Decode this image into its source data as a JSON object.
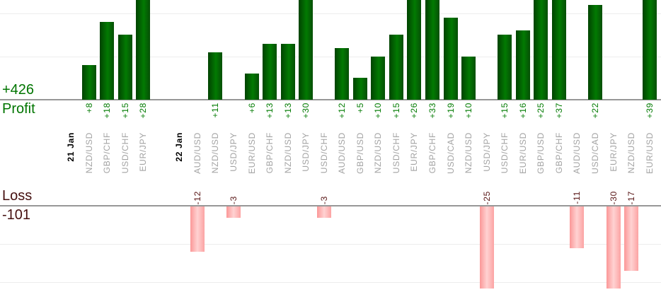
{
  "chart_data": {
    "type": "bar",
    "profit_total_label": "+426",
    "profit_axis_label": "Profit",
    "loss_axis_label": "Loss",
    "loss_total_label": "-101",
    "grid": true,
    "gridline_interval": 10,
    "legend_position": "none",
    "colors": {
      "profit_bar": "#026b02",
      "loss_bar": "#ffb5b5",
      "profit_text": "#007a00",
      "loss_text": "#571414",
      "pair_label_text": "#a3a3a3",
      "date_label_text": "#000000",
      "axis_line": "#979797",
      "gridline": "#ededed"
    },
    "columns": [
      {
        "type": "date",
        "label": "21 Jan"
      },
      {
        "type": "trade",
        "pair": "NZD/USD",
        "value": 8,
        "value_label": "+8"
      },
      {
        "type": "trade",
        "pair": "GBP/CHF",
        "value": 18,
        "value_label": "+18"
      },
      {
        "type": "trade",
        "pair": "USD/CHF",
        "value": 15,
        "value_label": "+15"
      },
      {
        "type": "trade",
        "pair": "EUR/JPY",
        "value": 28,
        "value_label": "+28"
      },
      {
        "type": "spacer"
      },
      {
        "type": "date",
        "label": "22 Jan"
      },
      {
        "type": "trade",
        "pair": "AUD/USD",
        "value": -12,
        "value_label": "-12"
      },
      {
        "type": "trade",
        "pair": "NZD/USD",
        "value": 11,
        "value_label": "+11"
      },
      {
        "type": "trade",
        "pair": "USD/JPY",
        "value": -3,
        "value_label": "-3"
      },
      {
        "type": "trade",
        "pair": "EUR/USD",
        "value": 6,
        "value_label": "+6"
      },
      {
        "type": "trade",
        "pair": "GBP/CHF",
        "value": 13,
        "value_label": "+13"
      },
      {
        "type": "trade",
        "pair": "NZD/USD",
        "value": 13,
        "value_label": "+13"
      },
      {
        "type": "trade",
        "pair": "USD/JPY",
        "value": 30,
        "value_label": "+30"
      },
      {
        "type": "trade",
        "pair": "USD/CHF",
        "value": -3,
        "value_label": "-3"
      },
      {
        "type": "trade",
        "pair": "AUD/USD",
        "value": 12,
        "value_label": "+12"
      },
      {
        "type": "trade",
        "pair": "GBP/USD",
        "value": 5,
        "value_label": "+5"
      },
      {
        "type": "trade",
        "pair": "NZD/USD",
        "value": 10,
        "value_label": "+10"
      },
      {
        "type": "trade",
        "pair": "USD/CHF",
        "value": 15,
        "value_label": "+15"
      },
      {
        "type": "trade",
        "pair": "EUR/JPY",
        "value": 26,
        "value_label": "+26"
      },
      {
        "type": "trade",
        "pair": "GBP/CHF",
        "value": 33,
        "value_label": "+33"
      },
      {
        "type": "trade",
        "pair": "USD/CAD",
        "value": 19,
        "value_label": "+19"
      },
      {
        "type": "trade",
        "pair": "NZD/USD",
        "value": 10,
        "value_label": "+10"
      },
      {
        "type": "trade",
        "pair": "USD/JPY",
        "value": -25,
        "value_label": "-25"
      },
      {
        "type": "trade",
        "pair": "USD/CHF",
        "value": 15,
        "value_label": "+15"
      },
      {
        "type": "trade",
        "pair": "EUR/USD",
        "value": 16,
        "value_label": "+16"
      },
      {
        "type": "trade",
        "pair": "GBP/USD",
        "value": 25,
        "value_label": "+25"
      },
      {
        "type": "trade",
        "pair": "GBP/CHF",
        "value": 37,
        "value_label": "+37"
      },
      {
        "type": "trade",
        "pair": "AUD/USD",
        "value": -11,
        "value_label": "-11"
      },
      {
        "type": "trade",
        "pair": "USD/CAD",
        "value": 22,
        "value_label": "+22"
      },
      {
        "type": "trade",
        "pair": "EUR/JPY",
        "value": -30,
        "value_label": "-30"
      },
      {
        "type": "trade",
        "pair": "NZD/USD",
        "value": -17,
        "value_label": "-17"
      },
      {
        "type": "trade",
        "pair": "EUR/USD",
        "value": 39,
        "value_label": "+39"
      }
    ]
  }
}
